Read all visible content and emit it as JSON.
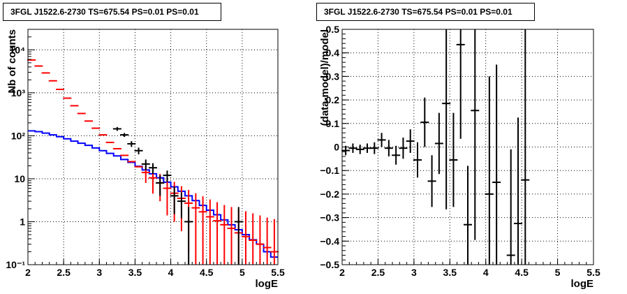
{
  "chart_data": [
    {
      "type": "line",
      "title": "3FGL J1522.6-2730 TS=675.54 PS=0.01 PS=0.01",
      "xlabel": "logE",
      "ylabel": "Nb of counts",
      "xlim": [
        2,
        5.5
      ],
      "ylim": [
        0.1,
        30000
      ],
      "yscale": "log",
      "grid": true,
      "x_ticks": [
        "2",
        "2.5",
        "3",
        "3.5",
        "4",
        "4.5",
        "5",
        "5.5"
      ],
      "y_ticks": [
        {
          "value": 0.1,
          "label": "10⁻¹"
        },
        {
          "value": 1,
          "label": "1"
        },
        {
          "value": 10,
          "label": "10"
        },
        {
          "value": 100,
          "label": "10²"
        },
        {
          "value": 1000,
          "label": "10³"
        },
        {
          "value": 10000,
          "label": "10⁴"
        }
      ],
      "bin_edges": [
        2.0,
        2.1,
        2.2,
        2.3,
        2.4,
        2.5,
        2.6,
        2.7,
        2.8,
        2.9,
        3.0,
        3.1,
        3.2,
        3.3,
        3.4,
        3.5,
        3.6,
        3.7,
        3.8,
        3.9,
        4.0,
        4.1,
        4.2,
        4.3,
        4.4,
        4.5,
        4.6,
        4.7,
        4.8,
        4.9,
        5.0,
        5.1,
        5.2,
        5.3,
        5.4,
        5.5
      ],
      "series": [
        {
          "role": "model_total",
          "color": "#ff0000",
          "x": [
            2.05,
            2.15,
            2.25,
            2.35,
            2.45,
            2.55,
            2.65,
            2.75,
            2.85,
            2.95,
            3.05,
            3.15,
            3.25,
            3.35,
            3.45,
            3.55,
            3.65,
            3.75,
            3.85,
            3.95,
            4.05,
            4.15,
            4.25,
            4.35,
            4.45,
            4.55,
            4.65,
            4.75,
            4.85,
            4.95,
            5.05,
            5.15,
            5.25,
            5.35,
            5.45
          ],
          "y": [
            5800,
            4200,
            2900,
            1900,
            1200,
            750,
            500,
            330,
            220,
            150,
            105,
            70,
            50,
            35,
            25,
            19,
            14,
            10.5,
            8,
            6,
            4.6,
            3.5,
            2.7,
            2.1,
            1.7,
            1.3,
            1.05,
            0.85,
            0.7,
            0.55,
            0.45,
            0.37,
            0.3,
            0.25,
            0.2
          ],
          "yerr_low": [
            0,
            0,
            0,
            0,
            0,
            0,
            0,
            0,
            0,
            0,
            0,
            0,
            0,
            0,
            0,
            0,
            6,
            6,
            5,
            4.6,
            3.6,
            2.9,
            2.5,
            2.0,
            1.7,
            1.3,
            1.05,
            0.85,
            0.7,
            0.55,
            0.45,
            0.37,
            0.3,
            0.25,
            0.2
          ],
          "yerr_high": [
            0,
            0,
            0,
            0,
            0,
            0,
            0,
            0,
            0,
            0,
            0,
            0,
            0,
            0,
            0,
            0,
            6,
            6,
            5,
            4.5,
            3.8,
            3.2,
            2.8,
            2.5,
            2.2,
            2.0,
            1.8,
            1.6,
            1.5,
            1.4,
            1.3,
            1.2,
            1.1,
            1.0,
            0.95
          ]
        },
        {
          "role": "model_component",
          "color": "#0000ff",
          "y": [
            130,
            125,
            115,
            105,
            95,
            85,
            75,
            67,
            60,
            52,
            45,
            39,
            34,
            28,
            24,
            19.5,
            16,
            13,
            10.5,
            8.3,
            6.5,
            5.1,
            4,
            3.1,
            2.4,
            1.85,
            1.45,
            1.1,
            0.85,
            0.65,
            0.5,
            0.38,
            0.3,
            0.2,
            0.15
          ]
        },
        {
          "role": "data",
          "color": "#000000",
          "x": [
            3.25,
            3.35,
            3.45,
            3.55,
            3.65,
            3.75,
            3.85,
            3.95,
            4.05,
            4.15,
            4.25,
            4.35,
            4.45,
            4.55,
            4.65,
            4.75,
            4.85,
            4.95,
            5.05
          ],
          "y": [
            145,
            105,
            65,
            45,
            22,
            18,
            8,
            12,
            4,
            3,
            1,
            1,
            1,
            1,
            1,
            1,
            1,
            1,
            1
          ],
          "yerr_low": [
            15,
            11,
            10,
            8,
            6,
            5,
            4,
            3.5,
            2.5,
            1.8,
            0.9,
            0.9,
            0.9,
            0.9,
            0.9,
            0.9,
            0.9,
            0.9,
            0.9
          ],
          "yerr_high": [
            15,
            11,
            10,
            8,
            6,
            5,
            4,
            3.5,
            2.5,
            1.8,
            1.2,
            1.2,
            1.2,
            1.2,
            1.2,
            1.2,
            1.2,
            1.2,
            1.2
          ],
          "single_count_with_error": [
            4.25,
            4.95
          ]
        }
      ]
    },
    {
      "type": "scatter",
      "title": "3FGL J1522.6-2730 TS=675.54 PS=0.01 PS=0.01",
      "xlabel": "logE",
      "ylabel": "(data-model)/model",
      "xlim": [
        2,
        5.5
      ],
      "ylim": [
        -0.5,
        0.5
      ],
      "grid": true,
      "x_ticks": [
        "2",
        "2.5",
        "3",
        "3.5",
        "4",
        "4.5",
        "5",
        "5.5"
      ],
      "y_ticks": [
        "−0.5",
        "−0.4",
        "−0.3",
        "−0.2",
        "−0.1",
        "0",
        "0.1",
        "0.2",
        "0.3",
        "0.4",
        "0.5"
      ],
      "series": [
        {
          "color": "#000000",
          "x": [
            2.05,
            2.15,
            2.25,
            2.35,
            2.45,
            2.55,
            2.65,
            2.75,
            2.85,
            2.95,
            3.05,
            3.15,
            3.25,
            3.35,
            3.45,
            3.55,
            3.65,
            3.75,
            3.85,
            4.05,
            4.15,
            4.35,
            4.45,
            4.55
          ],
          "y": [
            -0.015,
            -0.005,
            -0.01,
            -0.005,
            -0.005,
            0.03,
            -0.005,
            -0.035,
            -0.005,
            0.025,
            -0.055,
            0.105,
            -0.145,
            0.015,
            0.185,
            -0.055,
            0.435,
            -0.33,
            0.155,
            -0.2,
            -0.15,
            -0.46,
            -0.325,
            -0.14
          ],
          "yerr": [
            0.02,
            0.02,
            0.02,
            0.02,
            0.025,
            0.03,
            0.035,
            0.04,
            0.045,
            0.05,
            0.075,
            0.105,
            0.11,
            0.13,
            0.45,
            0.2,
            0.4,
            0.25,
            0.55,
            0.5,
            0.5,
            0.45,
            0.45,
            0.65
          ]
        }
      ]
    }
  ]
}
